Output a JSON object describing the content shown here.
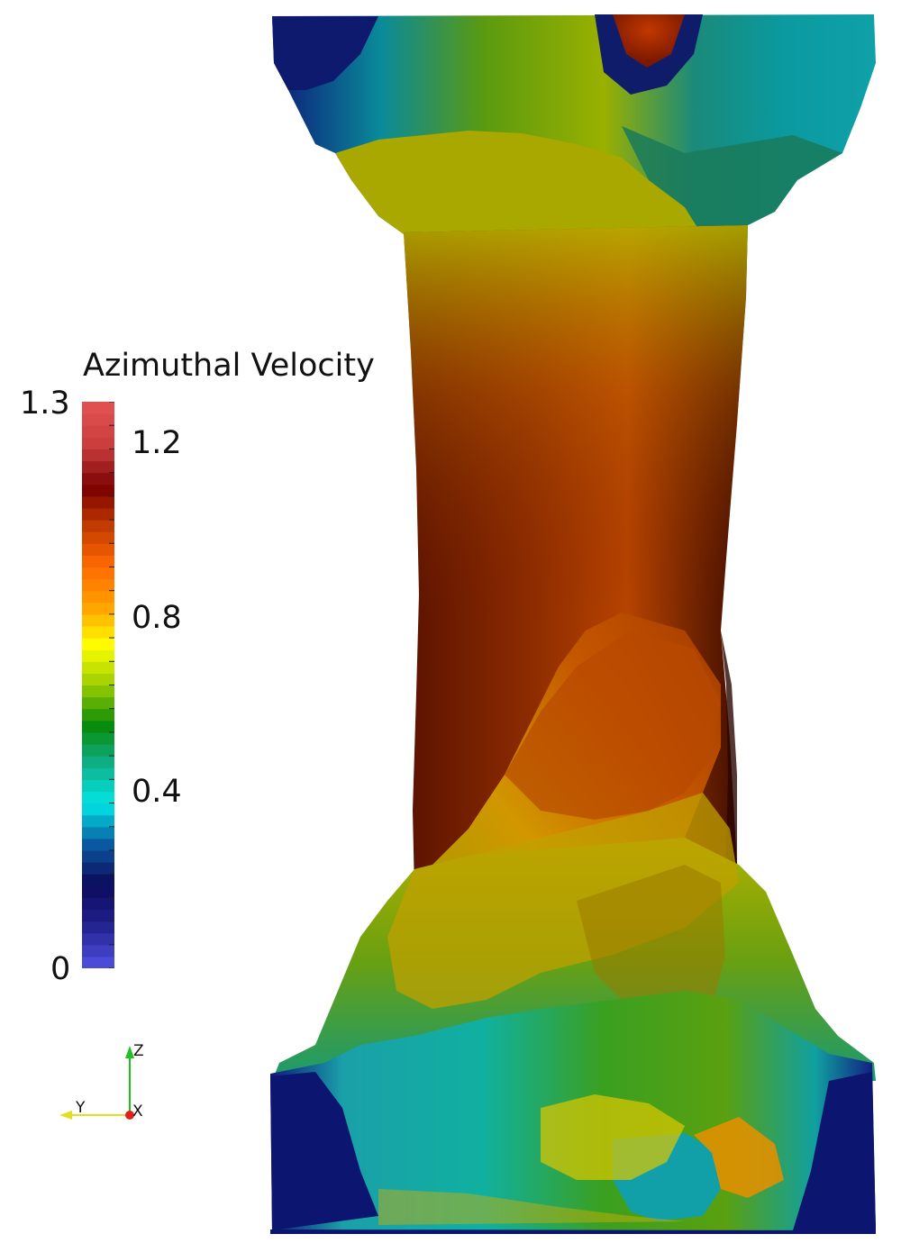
{
  "colorbar": {
    "title": "Azimuthal Velocity",
    "max_label": "1.3",
    "min_label": "0",
    "tick_labels": [
      "1.2",
      "0.8",
      "0.4"
    ],
    "tick_values": [
      1.2,
      0.8,
      0.4
    ],
    "range": [
      0,
      1.3
    ],
    "colors": [
      "#4b4bd8",
      "#1f1f8a",
      "#0b0b5c",
      "#0a5aa0",
      "#00e6e6",
      "#10b08a",
      "#088a08",
      "#9acd00",
      "#ffff00",
      "#ffa000",
      "#ff6a00",
      "#c43c00",
      "#7a0000",
      "#c83c3c",
      "#e05050"
    ]
  },
  "orientation_axes": {
    "z_label": "Z",
    "y_label": "Y",
    "x_label": "X",
    "z_color": "#22c022",
    "y_color": "#e0e020",
    "x_color": "#e02020"
  }
}
